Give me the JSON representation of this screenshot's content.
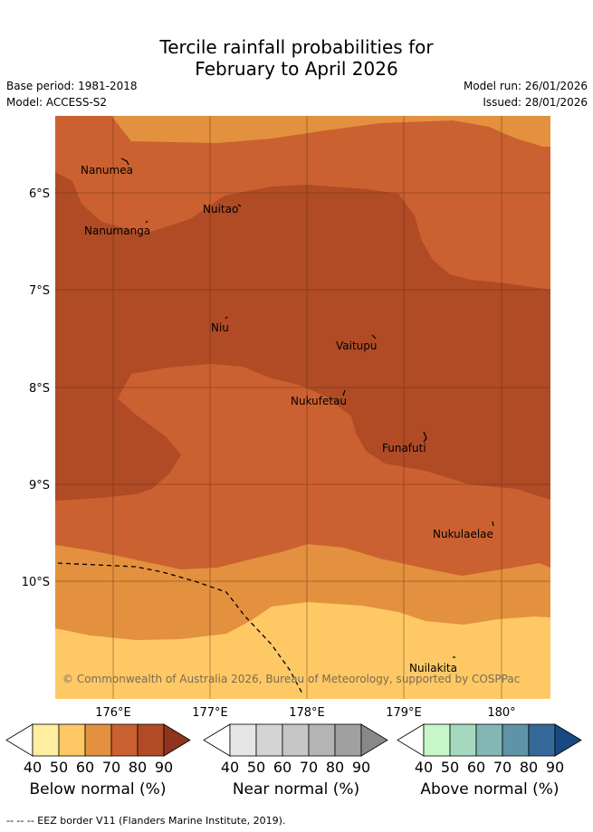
{
  "header": {
    "title_line1": "Tercile rainfall probabilities for",
    "title_line2": "February to April 2026",
    "base_period": "Base period: 1981-2018",
    "model": "Model: ACCESS-S2",
    "model_run": "Model run: 26/01/2026",
    "issued": "Issued: 28/01/2026"
  },
  "map": {
    "lat_labels": [
      "6°S",
      "7°S",
      "8°S",
      "9°S",
      "10°S"
    ],
    "lon_labels": [
      "176°E",
      "177°E",
      "178°E",
      "179°E",
      "180°"
    ],
    "places": [
      "Nanumea",
      "Nuitao",
      "Nanumanga",
      "Niu",
      "Vaitupu",
      "Nukufetau",
      "Funafuti",
      "Nukulaelae",
      "Nuilakita"
    ],
    "copyright": "© Commonwealth of Australia 2026, Bureau of Meteorology, supported by COSPPac"
  },
  "legend": {
    "ticks": [
      "40",
      "50",
      "60",
      "70",
      "80",
      "90"
    ],
    "below": {
      "label": "Below normal (%)",
      "colors": [
        "#ffeda0",
        "#fec965",
        "#e3913f",
        "#cb6131",
        "#b04b26",
        "#8f341f"
      ]
    },
    "near": {
      "label": "Near normal (%)",
      "colors": [
        "#e6e6e6",
        "#d4d4d4",
        "#c6c6c6",
        "#b4b4b4",
        "#a0a0a0",
        "#888888"
      ]
    },
    "above": {
      "label": "Above normal (%)",
      "colors": [
        "#c7f7c9",
        "#a4d8bf",
        "#82b7b3",
        "#5e94a5",
        "#356999",
        "#174a83"
      ]
    }
  },
  "footer": {
    "eez_legend": "-- -- -- EEZ border V11 (Flanders Marine Institute, 2019)."
  }
}
